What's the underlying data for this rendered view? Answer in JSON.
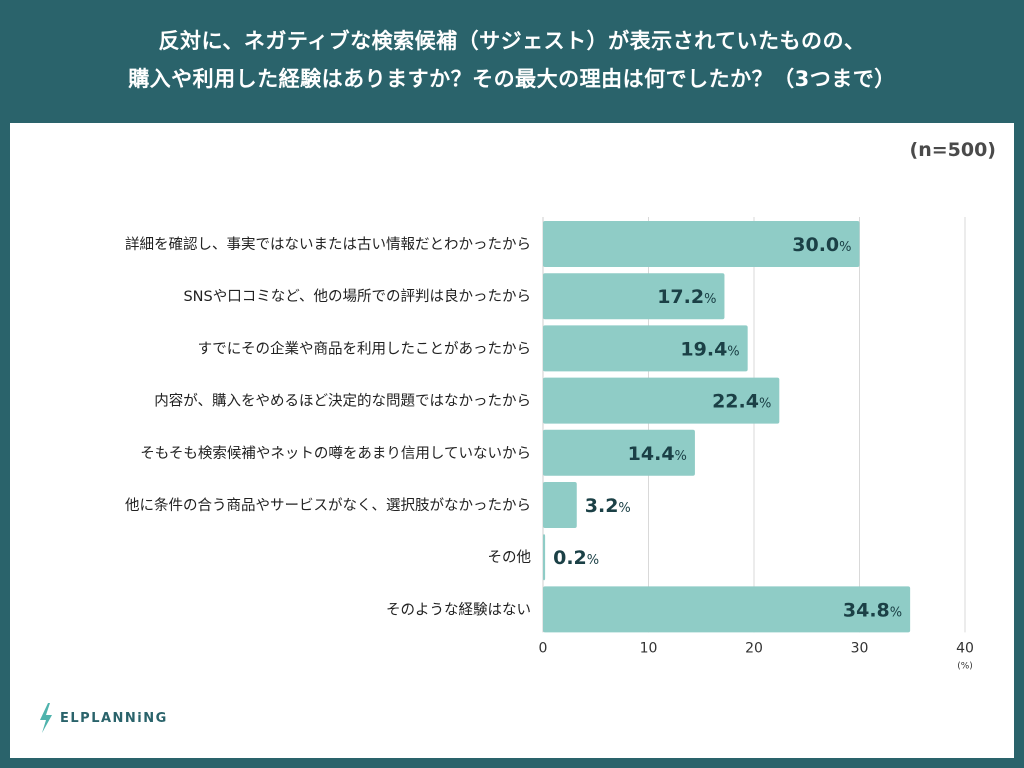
{
  "header": {
    "title_line1": "反対に、ネガティブな検索候補（サジェスト）が表示されていたものの、",
    "title_line2": "購入や利用した経験はありますか？その最大の理由は何でしたか？（3つまで）"
  },
  "sample_size": "(n=500)",
  "logo": {
    "text": "ELPLANNiNG",
    "icon": "lightning-bolt-icon"
  },
  "colors": {
    "bar": "#8fccc6",
    "frame": "#2a636b",
    "value_text": "#1b4046",
    "grid": "#d9d9d9"
  },
  "chart_data": {
    "type": "bar",
    "orientation": "horizontal",
    "title": "反対に、ネガティブな検索候補（サジェスト）が表示されていたものの、購入や利用した経験はありますか？その最大の理由は何でしたか？（3つまで）",
    "categories": [
      "詳細を確認し、事実ではないまたは古い情報だとわかったから",
      "SNSや口コミなど、他の場所での評判は良かったから",
      "すでにその企業や商品を利用したことがあったから",
      "内容が、購入をやめるほど決定的な問題ではなかったから",
      "そもそも検索候補やネットの噂をあまり信用していないから",
      "他に条件の合う商品やサービスがなく、選択肢がなかったから",
      "その他",
      "そのような経験はない"
    ],
    "values": [
      30.0,
      17.2,
      19.4,
      22.4,
      14.4,
      3.2,
      0.2,
      34.8
    ],
    "value_labels": [
      "30.0",
      "17.2",
      "19.4",
      "22.4",
      "14.4",
      "3.2",
      "0.2",
      "34.8"
    ],
    "value_suffix": "%",
    "xlabel": "",
    "x_unit": "(%)",
    "xlim": [
      0,
      40
    ],
    "xticks": [
      0,
      10,
      20,
      30,
      40
    ],
    "grid": true,
    "legend": "none"
  }
}
